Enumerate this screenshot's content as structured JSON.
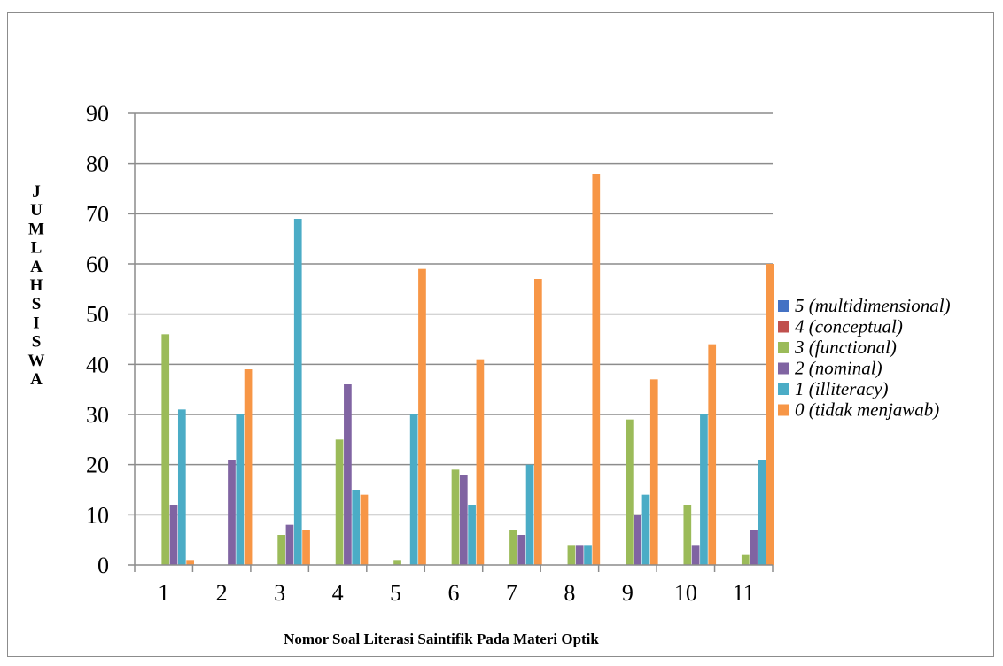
{
  "chart_data": {
    "type": "bar",
    "xlabel": "Nomor Soal Literasi Saintifik Pada Materi Optik",
    "ylabel": "JUMLAHSISWA",
    "ylim": [
      0,
      90
    ],
    "ytick_step": 10,
    "grid": true,
    "legend_position": "right",
    "categories": [
      "1",
      "2",
      "3",
      "4",
      "5",
      "6",
      "7",
      "8",
      "9",
      "10",
      "11"
    ],
    "series": [
      {
        "name": "5 (multidimensional)",
        "color": "#4472C4",
        "values": [
          0,
          0,
          0,
          0,
          0,
          0,
          0,
          0,
          0,
          0,
          0
        ]
      },
      {
        "name": "4 (conceptual)",
        "color": "#C0504D",
        "values": [
          0,
          0,
          0,
          0,
          0,
          0,
          0,
          0,
          0,
          0,
          0
        ]
      },
      {
        "name": "3 (functional)",
        "color": "#9BBB59",
        "values": [
          46,
          0,
          6,
          25,
          1,
          19,
          7,
          4,
          29,
          12,
          2
        ]
      },
      {
        "name": "2 (nominal)",
        "color": "#8064A2",
        "values": [
          12,
          21,
          8,
          36,
          0,
          18,
          6,
          4,
          10,
          4,
          7
        ]
      },
      {
        "name": "1 (illiteracy)",
        "color": "#4BACC6",
        "values": [
          31,
          30,
          69,
          15,
          30,
          12,
          20,
          4,
          14,
          30,
          21
        ]
      },
      {
        "name": "0 (tidak menjawab)",
        "color": "#F79646",
        "values": [
          1,
          39,
          7,
          14,
          59,
          41,
          57,
          78,
          37,
          44,
          60
        ]
      }
    ]
  }
}
